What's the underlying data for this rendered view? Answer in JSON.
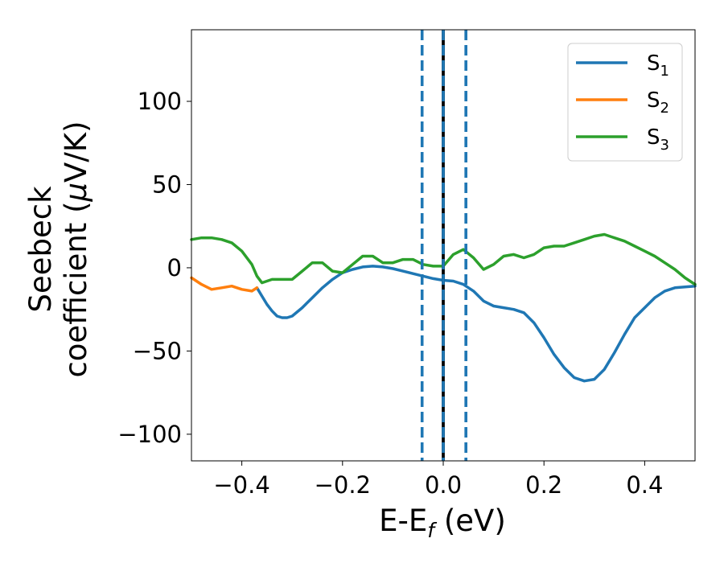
{
  "chart_data": {
    "type": "line",
    "xlabel": "E-E",
    "xlabel_sub": "f",
    "xlabel_unit": " (eV)",
    "ylabel_line1": "Seebeck",
    "ylabel_line2_text": "coefficient  (",
    "ylabel_line2_mu": "μ",
    "ylabel_line2_unit": "V/K)",
    "xlim": [
      -0.5,
      0.5
    ],
    "ylim": [
      -116,
      143
    ],
    "xticks": [
      -0.4,
      -0.2,
      0.0,
      0.2,
      0.4
    ],
    "xtick_labels": [
      "−0.4",
      "−0.2",
      "0.0",
      "0.2",
      "0.4"
    ],
    "yticks": [
      100,
      50,
      0,
      -50,
      -100
    ],
    "ytick_labels": [
      "100",
      "50",
      "0",
      "−50",
      "−100"
    ],
    "grid": false,
    "legend_position": "top-right",
    "vlines": [
      {
        "x": -0.042,
        "color": "#1f77b4",
        "style": "dashed"
      },
      {
        "x": 0.0,
        "color": "#000000",
        "style": "solid"
      },
      {
        "x": 0.0,
        "color": "#1f77b4",
        "style": "dashed"
      },
      {
        "x": 0.045,
        "color": "#1f77b4",
        "style": "dashed"
      }
    ],
    "series": [
      {
        "name": "S",
        "sub": "1",
        "color": "#1f77b4",
        "x": [
          -0.37,
          -0.36,
          -0.35,
          -0.34,
          -0.33,
          -0.32,
          -0.31,
          -0.3,
          -0.28,
          -0.26,
          -0.24,
          -0.22,
          -0.2,
          -0.18,
          -0.16,
          -0.14,
          -0.12,
          -0.1,
          -0.08,
          -0.06,
          -0.04,
          -0.02,
          0.0,
          0.02,
          0.04,
          0.06,
          0.08,
          0.1,
          0.12,
          0.14,
          0.16,
          0.18,
          0.2,
          0.22,
          0.24,
          0.26,
          0.28,
          0.3,
          0.32,
          0.34,
          0.36,
          0.38,
          0.4,
          0.42,
          0.44,
          0.46,
          0.48,
          0.5
        ],
        "y": [
          -12,
          -17,
          -22,
          -26,
          -29,
          -30,
          -30,
          -29,
          -24,
          -18,
          -12,
          -7,
          -3,
          -1,
          0.5,
          1,
          0.5,
          -0.5,
          -2,
          -3.5,
          -5,
          -6.5,
          -7.5,
          -8,
          -10,
          -14,
          -20,
          -23,
          -24,
          -25,
          -27,
          -33,
          -42,
          -52,
          -60,
          -66,
          -68,
          -67,
          -61,
          -51,
          -40,
          -30,
          -24,
          -18,
          -14,
          -12,
          -11.5,
          -11
        ]
      },
      {
        "name": "S",
        "sub": "2",
        "color": "#ff7f0e",
        "x": [
          -0.5,
          -0.48,
          -0.46,
          -0.44,
          -0.42,
          -0.4,
          -0.38,
          -0.37
        ],
        "y": [
          -6,
          -10,
          -13,
          -12,
          -11,
          -13,
          -14,
          -12
        ]
      },
      {
        "name": "S",
        "sub": "3",
        "color": "#2ca02c",
        "x": [
          -0.5,
          -0.48,
          -0.46,
          -0.44,
          -0.42,
          -0.4,
          -0.38,
          -0.37,
          -0.36,
          -0.34,
          -0.32,
          -0.3,
          -0.28,
          -0.26,
          -0.24,
          -0.22,
          -0.2,
          -0.18,
          -0.16,
          -0.14,
          -0.12,
          -0.1,
          -0.08,
          -0.06,
          -0.04,
          -0.02,
          0.0,
          0.02,
          0.04,
          0.06,
          0.08,
          0.1,
          0.12,
          0.14,
          0.16,
          0.18,
          0.2,
          0.22,
          0.24,
          0.26,
          0.28,
          0.3,
          0.32,
          0.34,
          0.36,
          0.38,
          0.4,
          0.42,
          0.44,
          0.46,
          0.48,
          0.5
        ],
        "y": [
          17,
          18,
          18,
          17,
          15,
          10,
          2,
          -5,
          -9,
          -7,
          -7,
          -7,
          -2,
          3,
          3,
          -2,
          -3,
          2,
          7,
          7,
          3,
          3,
          5,
          5,
          2,
          1,
          1,
          8,
          11,
          6,
          -1,
          2,
          7,
          8,
          6,
          8,
          12,
          13,
          13,
          15,
          17,
          19,
          20,
          18,
          16,
          13,
          10,
          7,
          3,
          -1,
          -6,
          -10
        ]
      }
    ]
  }
}
